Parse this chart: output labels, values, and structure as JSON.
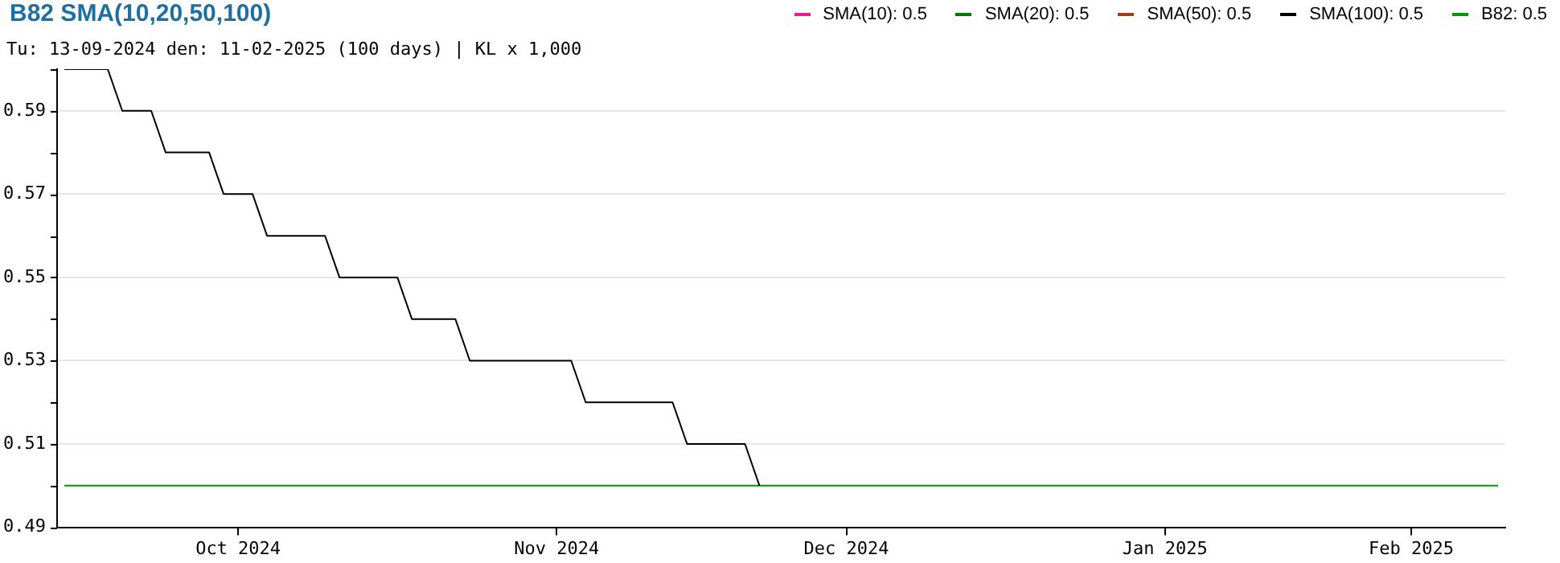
{
  "chart_data": {
    "type": "line",
    "title": "B82 SMA(10,20,50,100)",
    "subtitle": "Tu: 13-09-2024 den: 11-02-2025 (100 days) | KL x 1,000",
    "categories": [
      null,
      null,
      null,
      null,
      null,
      null,
      null,
      null,
      null,
      null,
      null,
      null,
      "Oct 2024",
      null,
      null,
      null,
      null,
      null,
      null,
      null,
      null,
      null,
      null,
      null,
      null,
      null,
      null,
      null,
      null,
      null,
      null,
      null,
      null,
      null,
      "Nov 2024",
      null,
      null,
      null,
      null,
      null,
      null,
      null,
      null,
      null,
      null,
      null,
      null,
      null,
      null,
      null,
      null,
      null,
      null,
      null,
      "Dec 2024",
      null,
      null,
      null,
      null,
      null,
      null,
      null,
      null,
      null,
      null,
      null,
      null,
      null,
      null,
      null,
      null,
      null,
      null,
      null,
      null,
      null,
      "Jan 2025",
      null,
      null,
      null,
      null,
      null,
      null,
      null,
      null,
      null,
      null,
      null,
      null,
      null,
      null,
      null,
      null,
      "Feb 2025",
      null,
      null,
      null,
      null,
      null,
      null
    ],
    "series": [
      {
        "name": "SMA(10): 0.5",
        "color": "#ff1493",
        "values": [
          null,
          null,
          null,
          null,
          null,
          null,
          null,
          null,
          null,
          null,
          null,
          null,
          null,
          null,
          null,
          null,
          null,
          null,
          null,
          null,
          null,
          null,
          null,
          null,
          null,
          null,
          null,
          null,
          null,
          null,
          null,
          null,
          null,
          null,
          null,
          null,
          null,
          null,
          null,
          null,
          null,
          null,
          null,
          null,
          null,
          null,
          null,
          null,
          null,
          null,
          null,
          null,
          null,
          null,
          null,
          null,
          null,
          null,
          null,
          null,
          null,
          null,
          null,
          null,
          null,
          null,
          null,
          null,
          null,
          null,
          null,
          null,
          null,
          null,
          null,
          null,
          null,
          null,
          null,
          null,
          null,
          null,
          null,
          null,
          null,
          null,
          null,
          null,
          null,
          null,
          null,
          null,
          null,
          null,
          null,
          null,
          null,
          null,
          null,
          null
        ]
      },
      {
        "name": "SMA(20): 0.5",
        "color": "#007700",
        "values": [
          null,
          null,
          null,
          null,
          null,
          null,
          null,
          null,
          null,
          null,
          null,
          null,
          null,
          null,
          null,
          null,
          null,
          null,
          null,
          null,
          null,
          null,
          null,
          null,
          null,
          null,
          null,
          null,
          null,
          null,
          null,
          null,
          null,
          null,
          null,
          null,
          null,
          null,
          null,
          null,
          null,
          null,
          null,
          null,
          null,
          null,
          null,
          null,
          null,
          null,
          null,
          null,
          null,
          null,
          null,
          null,
          null,
          null,
          null,
          null,
          null,
          null,
          null,
          null,
          null,
          null,
          null,
          null,
          null,
          null,
          null,
          null,
          null,
          null,
          null,
          null,
          null,
          null,
          null,
          null,
          null,
          null,
          null,
          null,
          null,
          null,
          null,
          null,
          null,
          null,
          null,
          null,
          null,
          null,
          null,
          null,
          null,
          null,
          null,
          null
        ]
      },
      {
        "name": "SMA(50): 0.5",
        "color": "#a0401a",
        "values": [
          null,
          null,
          null,
          null,
          null,
          null,
          null,
          null,
          null,
          null,
          null,
          null,
          null,
          null,
          null,
          null,
          null,
          null,
          null,
          null,
          null,
          null,
          null,
          null,
          null,
          null,
          null,
          null,
          null,
          null,
          null,
          null,
          null,
          null,
          null,
          null,
          null,
          null,
          null,
          null,
          null,
          null,
          null,
          null,
          null,
          null,
          null,
          null,
          null,
          null,
          null,
          null,
          null,
          null,
          null,
          null,
          null,
          null,
          null,
          null,
          null,
          null,
          null,
          null,
          null,
          null,
          null,
          null,
          null,
          null,
          null,
          null,
          null,
          null,
          null,
          null,
          null,
          null,
          null,
          null,
          null,
          null,
          null,
          null,
          null,
          null,
          null,
          null,
          null,
          null,
          null,
          null,
          null,
          null,
          null,
          null,
          null,
          null,
          null,
          null
        ]
      },
      {
        "name": "SMA(100): 0.5",
        "color": "#000000",
        "values": [
          0.6,
          0.6,
          0.6,
          0.6,
          0.59,
          0.59,
          0.59,
          0.58,
          0.58,
          0.58,
          0.58,
          0.57,
          0.57,
          0.57,
          0.56,
          0.56,
          0.56,
          0.56,
          0.56,
          0.55,
          0.55,
          0.55,
          0.55,
          0.55,
          0.54,
          0.54,
          0.54,
          0.54,
          0.53,
          0.53,
          0.53,
          0.53,
          0.53,
          0.53,
          0.53,
          0.53,
          0.52,
          0.52,
          0.52,
          0.52,
          0.52,
          0.52,
          0.52,
          0.51,
          0.51,
          0.51,
          0.51,
          0.51,
          0.5,
          null,
          null,
          null,
          null,
          null,
          null,
          null,
          null,
          null,
          null,
          null,
          null,
          null,
          null,
          null,
          null,
          null,
          null,
          null,
          null,
          null,
          null,
          null,
          null,
          null,
          null,
          null,
          null,
          null,
          null,
          null,
          null,
          null,
          null,
          null,
          null,
          null,
          null,
          null,
          null,
          null,
          null,
          null,
          null,
          null,
          null,
          null,
          null,
          null,
          null,
          null
        ]
      },
      {
        "name": "B82: 0.5",
        "color": "#009900",
        "values": [
          0.5,
          0.5,
          0.5,
          0.5,
          0.5,
          0.5,
          0.5,
          0.5,
          0.5,
          0.5,
          0.5,
          0.5,
          0.5,
          0.5,
          0.5,
          0.5,
          0.5,
          0.5,
          0.5,
          0.5,
          0.5,
          0.5,
          0.5,
          0.5,
          0.5,
          0.5,
          0.5,
          0.5,
          0.5,
          0.5,
          0.5,
          0.5,
          0.5,
          0.5,
          0.5,
          0.5,
          0.5,
          0.5,
          0.5,
          0.5,
          0.5,
          0.5,
          0.5,
          0.5,
          0.5,
          0.5,
          0.5,
          0.5,
          0.5,
          0.5,
          0.5,
          0.5,
          0.5,
          0.5,
          0.5,
          0.5,
          0.5,
          0.5,
          0.5,
          0.5,
          0.5,
          0.5,
          0.5,
          0.5,
          0.5,
          0.5,
          0.5,
          0.5,
          0.5,
          0.5,
          0.5,
          0.5,
          0.5,
          0.5,
          0.5,
          0.5,
          0.5,
          0.5,
          0.5,
          0.5,
          0.5,
          0.5,
          0.5,
          0.5,
          0.5,
          0.5,
          0.5,
          0.5,
          0.5,
          0.5,
          0.5,
          0.5,
          0.5,
          0.5,
          0.5,
          0.5,
          0.5,
          0.5,
          0.5,
          0.5
        ]
      }
    ],
    "ylim": [
      0.49,
      0.6
    ],
    "yticks": [
      0.49,
      {
        "value": 0.5,
        "label": null
      },
      0.51,
      {
        "value": 0.52,
        "label": null
      },
      0.53,
      {
        "value": 0.54,
        "label": null
      },
      0.55,
      {
        "value": 0.56,
        "label": null
      },
      0.57,
      {
        "value": 0.58,
        "label": null
      },
      0.59,
      {
        "value": 0.6,
        "label": null
      }
    ],
    "grid": "y",
    "legend": "top right",
    "marker": "none",
    "line_style": "solid"
  }
}
